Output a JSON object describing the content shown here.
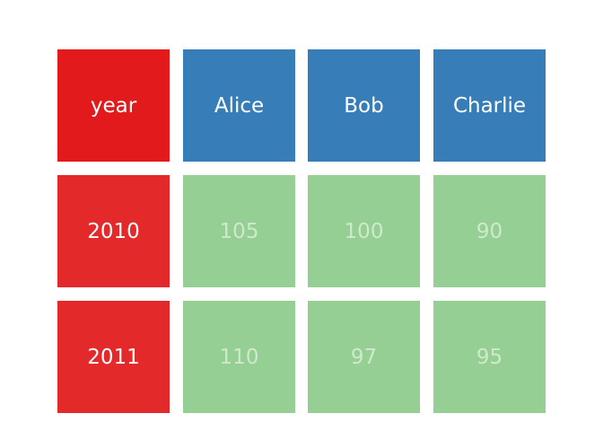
{
  "table": {
    "header": [
      "year",
      "Alice",
      "Bob",
      "Charlie"
    ],
    "rows": [
      [
        2010,
        105,
        100,
        90
      ],
      [
        2011,
        110,
        97,
        95
      ]
    ]
  }
}
